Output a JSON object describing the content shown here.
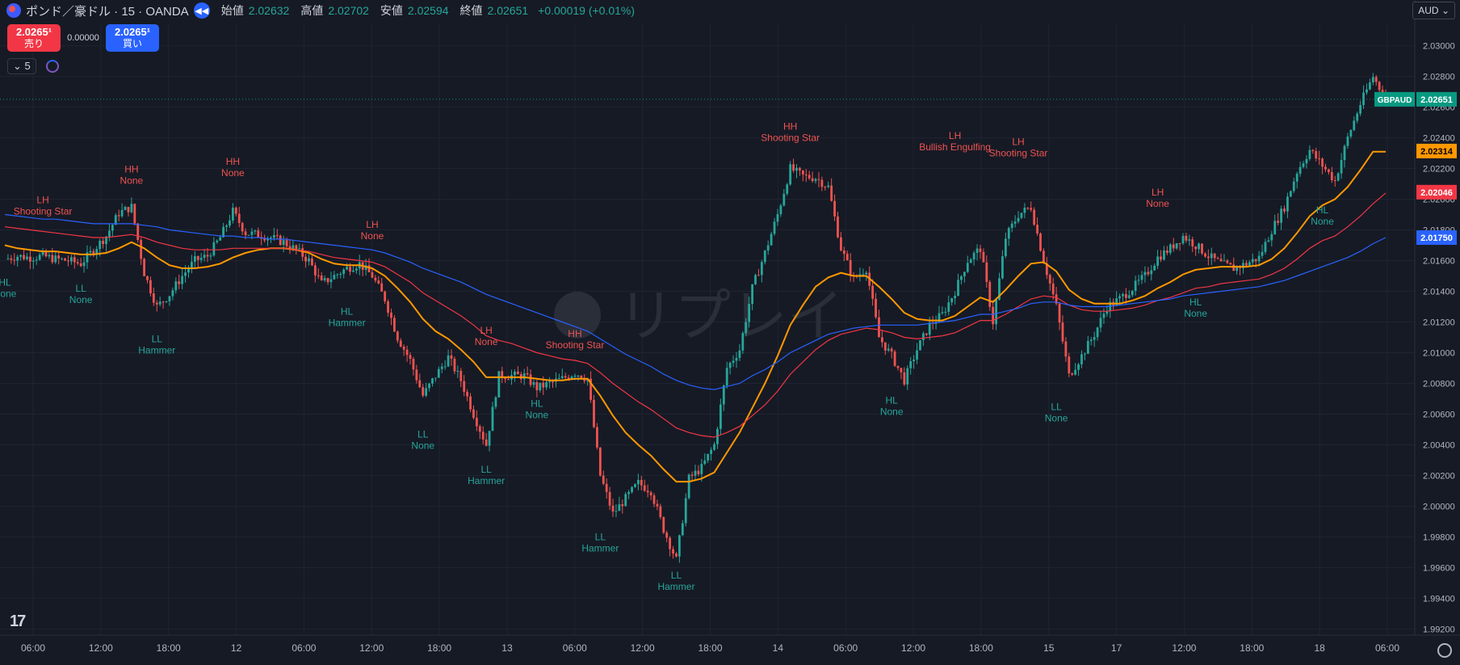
{
  "header": {
    "symbol_title": "ポンド／豪ドル · 15 · OANDA",
    "open_label": "始値",
    "open_value": "2.02632",
    "high_label": "高値",
    "high_value": "2.02702",
    "low_label": "安値",
    "low_value": "2.02594",
    "close_label": "終値",
    "close_value": "2.02651",
    "change": "+0.00019 (+0.01%)"
  },
  "trade": {
    "sell_price": "2.0265¹",
    "sell_label": "売り",
    "spread": "0.00000",
    "buy_price": "2.0265¹",
    "buy_label": "買い"
  },
  "indicator": {
    "count": "5"
  },
  "currency": "AUD",
  "watermark": "リプレイ",
  "colors": {
    "up": "#26a69a",
    "down": "#ef5350",
    "ema_fast": "#ff9800",
    "ema_mid": "#f23645",
    "ema_slow": "#2962ff",
    "background": "#161a25",
    "label_high": "#ef5350",
    "label_low": "#26a69a"
  },
  "chart_data": {
    "type": "candlestick",
    "title": "ポンド／豪ドル · 15 · OANDA",
    "y_range": [
      1.9916,
      2.0314
    ],
    "y_ticks": [
      "2.03000",
      "2.02800",
      "2.02600",
      "2.02400",
      "2.02200",
      "2.02000",
      "2.01800",
      "2.01600",
      "2.01400",
      "2.01200",
      "2.01000",
      "2.00800",
      "2.00600",
      "2.00400",
      "2.00200",
      "2.00000",
      "1.99800",
      "1.99600",
      "1.99400",
      "1.99200"
    ],
    "x_ticks": [
      "06:00",
      "12:00",
      "18:00",
      "12",
      "06:00",
      "12:00",
      "18:00",
      "13",
      "06:00",
      "12:00",
      "18:00",
      "14",
      "06:00",
      "12:00",
      "18:00",
      "15",
      "17",
      "12:00",
      "18:00",
      "18",
      "06:00"
    ],
    "price_path": [
      2.0161,
      2.0163,
      2.0162,
      2.0163,
      2.0161,
      2.016,
      2.0158,
      2.0167,
      2.0176,
      2.0191,
      2.0195,
      2.0152,
      2.013,
      2.0138,
      2.015,
      2.016,
      2.0163,
      2.0175,
      2.0192,
      2.0178,
      2.0177,
      2.0175,
      2.0172,
      2.0167,
      2.016,
      2.0145,
      2.015,
      2.0155,
      2.0158,
      2.015,
      2.0135,
      2.011,
      2.0095,
      2.0072,
      2.0085,
      2.0097,
      2.0082,
      2.006,
      2.004,
      2.0085,
      2.0085,
      2.0085,
      2.0077,
      2.008,
      2.0083,
      2.0087,
      2.0083,
      2.002,
      1.9995,
      2.0005,
      2.0015,
      2.001,
      1.9985,
      1.9965,
      2.0018,
      2.0025,
      2.004,
      2.009,
      2.0102,
      2.0142,
      2.0165,
      2.019,
      2.022,
      2.0215,
      2.0214,
      2.0208,
      2.0168,
      2.0148,
      2.0155,
      2.011,
      2.0098,
      2.0082,
      2.0102,
      2.0118,
      2.0125,
      2.014,
      2.016,
      2.0168,
      2.012,
      2.0175,
      2.019,
      2.0195,
      2.016,
      2.013,
      2.0085,
      2.0098,
      2.0112,
      2.013,
      2.0135,
      2.0142,
      2.015,
      2.0162,
      2.0168,
      2.0176,
      2.017,
      2.0163,
      2.0158,
      2.0155,
      2.0158,
      2.0162,
      2.018,
      2.0195,
      2.0218,
      2.0232,
      2.0222,
      2.0212,
      2.024,
      2.0262,
      2.028,
      2.0265
    ],
    "series": [
      {
        "name": "EMA",
        "values": [
          2.017,
          2.0168,
          2.0167,
          2.0166,
          2.0166,
          2.0165,
          2.0164,
          2.0164,
          2.0165,
          2.0168,
          2.0172,
          2.0168,
          2.0162,
          2.0157,
          2.0155,
          2.0155,
          2.0156,
          2.0158,
          2.0162,
          2.0165,
          2.0167,
          2.0168,
          2.0168,
          2.0167,
          2.0165,
          2.0161,
          2.0158,
          2.0157,
          2.0157,
          2.0155,
          2.015,
          2.0142,
          2.0133,
          2.0122,
          2.0114,
          2.0109,
          2.0102,
          2.0094,
          2.0084,
          2.0084,
          2.0084,
          2.0084,
          2.0083,
          2.0082,
          2.0082,
          2.0083,
          2.0083,
          2.0072,
          2.0059,
          2.0048,
          2.004,
          2.0033,
          2.0024,
          2.0016,
          2.0016,
          2.0018,
          2.0022,
          2.0035,
          2.0048,
          2.0064,
          2.008,
          2.0098,
          2.0118,
          2.0131,
          2.0143,
          2.0149,
          2.0152,
          2.015,
          2.015,
          2.0143,
          2.0135,
          2.0126,
          2.0122,
          2.0121,
          2.0121,
          2.0124,
          2.013,
          2.0136,
          2.0133,
          2.0141,
          2.015,
          2.0158,
          2.0159,
          2.0153,
          2.0141,
          2.0135,
          2.0132,
          2.0132,
          2.0132,
          2.0134,
          2.0137,
          2.0142,
          2.0146,
          2.0151,
          2.0154,
          2.0155,
          2.0156,
          2.0156,
          2.0156,
          2.0157,
          2.0161,
          2.0168,
          2.0178,
          2.0189,
          2.0196,
          2.02,
          2.0208,
          2.0219,
          2.0231,
          2.0231
        ]
      },
      {
        "name": "EMA",
        "values": [
          2.0182,
          2.0181,
          2.018,
          2.0179,
          2.0178,
          2.0177,
          2.0176,
          2.0175,
          2.0175,
          2.0176,
          2.0177,
          2.0175,
          2.0172,
          2.017,
          2.0168,
          2.0167,
          2.0167,
          2.0167,
          2.0168,
          2.0168,
          2.0168,
          2.0168,
          2.0168,
          2.0167,
          2.0166,
          2.0164,
          2.0162,
          2.0161,
          2.016,
          2.0159,
          2.0156,
          2.0151,
          2.0146,
          2.0139,
          2.0134,
          2.0129,
          2.0124,
          2.0118,
          2.0111,
          2.0108,
          2.0106,
          2.0103,
          2.01,
          2.0098,
          2.0096,
          2.0095,
          2.0093,
          2.0087,
          2.008,
          2.0074,
          2.0068,
          2.0063,
          2.0057,
          2.0051,
          2.0048,
          2.0046,
          2.0045,
          2.0048,
          2.0052,
          2.0059,
          2.0066,
          2.0075,
          2.0086,
          2.0094,
          2.0102,
          2.0108,
          2.0112,
          2.0114,
          2.0116,
          2.0115,
          2.0113,
          2.011,
          2.0109,
          2.011,
          2.0111,
          2.0113,
          2.0117,
          2.0121,
          2.0121,
          2.0125,
          2.013,
          2.0135,
          2.0137,
          2.0136,
          2.0131,
          2.0128,
          2.0127,
          2.0127,
          2.0128,
          2.0129,
          2.0131,
          2.0134,
          2.0136,
          2.0139,
          2.0142,
          2.0143,
          2.0145,
          2.0146,
          2.0147,
          2.0148,
          2.0151,
          2.0155,
          2.0161,
          2.0168,
          2.0173,
          2.0176,
          2.0182,
          2.0189,
          2.0197,
          2.0204
        ]
      },
      {
        "name": "EMA",
        "values": [
          2.019,
          2.0189,
          2.0188,
          2.0187,
          2.0187,
          2.0186,
          2.0185,
          2.0184,
          2.0184,
          2.0184,
          2.0184,
          2.0183,
          2.0182,
          2.018,
          2.0179,
          2.0178,
          2.0177,
          2.0176,
          2.0176,
          2.0175,
          2.0175,
          2.0174,
          2.0174,
          2.0173,
          2.0172,
          2.0171,
          2.017,
          2.0169,
          2.0168,
          2.0167,
          2.0165,
          2.0162,
          2.0159,
          2.0155,
          2.0152,
          2.0149,
          2.0146,
          2.0142,
          2.0138,
          2.0135,
          2.0132,
          2.0129,
          2.0126,
          2.0123,
          2.012,
          2.0117,
          2.0114,
          2.0109,
          2.0104,
          2.0099,
          2.0095,
          2.0091,
          2.0086,
          2.0082,
          2.0079,
          2.0077,
          2.0076,
          2.0078,
          2.008,
          2.0085,
          2.0089,
          2.0094,
          2.01,
          2.0104,
          2.0108,
          2.0112,
          2.0114,
          2.0116,
          2.0117,
          2.0118,
          2.0118,
          2.0118,
          2.0118,
          2.0119,
          2.012,
          2.0121,
          2.0123,
          2.0125,
          2.0125,
          2.0127,
          2.0129,
          2.0132,
          2.0133,
          2.0133,
          2.0131,
          2.013,
          2.013,
          2.013,
          2.0131,
          2.0132,
          2.0133,
          2.0134,
          2.0135,
          2.0137,
          2.0138,
          2.0139,
          2.014,
          2.0141,
          2.0142,
          2.0143,
          2.0145,
          2.0147,
          2.015,
          2.0153,
          2.0156,
          2.0159,
          2.0162,
          2.0166,
          2.0171,
          2.0175
        ]
      }
    ],
    "annotations": [
      {
        "kind": "high",
        "line1": "LH",
        "line2": "Shooting Star",
        "x_index": 3,
        "price": 2.019
      },
      {
        "kind": "low",
        "line1": "HL",
        "line2": "None",
        "x_index": 0,
        "price": 2.0149
      },
      {
        "kind": "high",
        "line1": "HH",
        "line2": "None",
        "x_index": 10,
        "price": 2.021
      },
      {
        "kind": "low",
        "line1": "LL",
        "line2": "None",
        "x_index": 6,
        "price": 2.0145
      },
      {
        "kind": "low",
        "line1": "LL",
        "line2": "Hammer",
        "x_index": 12,
        "price": 2.0112
      },
      {
        "kind": "high",
        "line1": "HH",
        "line2": "None",
        "x_index": 18,
        "price": 2.0215
      },
      {
        "kind": "high",
        "line1": "LH",
        "line2": "None",
        "x_index": 29,
        "price": 2.0174
      },
      {
        "kind": "low",
        "line1": "HL",
        "line2": "Hammer",
        "x_index": 27,
        "price": 2.013
      },
      {
        "kind": "high",
        "line1": "LH",
        "line2": "None",
        "x_index": 38,
        "price": 2.0105
      },
      {
        "kind": "low",
        "line1": "LL",
        "line2": "None",
        "x_index": 33,
        "price": 2.005
      },
      {
        "kind": "low",
        "line1": "LL",
        "line2": "Hammer",
        "x_index": 38,
        "price": 2.0027
      },
      {
        "kind": "low",
        "line1": "HL",
        "line2": "None",
        "x_index": 42,
        "price": 2.007
      },
      {
        "kind": "high",
        "line1": "HH",
        "line2": "Shooting Star",
        "x_index": 45,
        "price": 2.0103
      },
      {
        "kind": "low",
        "line1": "LL",
        "line2": "Hammer",
        "x_index": 47,
        "price": 1.9983
      },
      {
        "kind": "low",
        "line1": "LL",
        "line2": "Hammer",
        "x_index": 53,
        "price": 1.9958
      },
      {
        "kind": "high",
        "line1": "HH",
        "line2": "Shooting Star",
        "x_index": 62,
        "price": 2.0238
      },
      {
        "kind": "low",
        "line1": "HL",
        "line2": "None",
        "x_index": 70,
        "price": 2.0072
      },
      {
        "kind": "high",
        "line1": "LH",
        "line2": "Bullish Engulfing",
        "x_index": 75,
        "price": 2.0232
      },
      {
        "kind": "high",
        "line1": "LH",
        "line2": "Shooting Star",
        "x_index": 80,
        "price": 2.0228
      },
      {
        "kind": "low",
        "line1": "LL",
        "line2": "None",
        "x_index": 83,
        "price": 2.0068
      },
      {
        "kind": "high",
        "line1": "LH",
        "line2": "None",
        "x_index": 91,
        "price": 2.0195
      },
      {
        "kind": "low",
        "line1": "HL",
        "line2": "None",
        "x_index": 94,
        "price": 2.0136
      },
      {
        "kind": "low",
        "line1": "HL",
        "line2": "None",
        "x_index": 104,
        "price": 2.0196
      }
    ],
    "price_labels": [
      {
        "text": "GBPAUD",
        "value": "2.02651",
        "price": 2.02651,
        "color": "#089981"
      },
      {
        "text": "",
        "value": "2.02314",
        "price": 2.02314,
        "color": "#ff9800"
      },
      {
        "text": "",
        "value": "2.02046",
        "price": 2.02046,
        "color": "#f23645"
      },
      {
        "text": "",
        "value": "2.01750",
        "price": 2.0175,
        "color": "#2962ff"
      }
    ]
  }
}
